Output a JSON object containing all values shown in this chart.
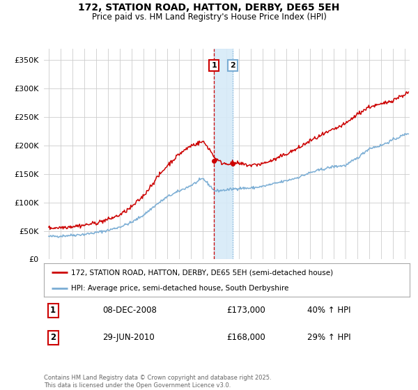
{
  "title": "172, STATION ROAD, HATTON, DERBY, DE65 5EH",
  "subtitle": "Price paid vs. HM Land Registry's House Price Index (HPI)",
  "legend_line1": "172, STATION ROAD, HATTON, DERBY, DE65 5EH (semi-detached house)",
  "legend_line2": "HPI: Average price, semi-detached house, South Derbyshire",
  "red_color": "#cc0000",
  "blue_color": "#7aadd4",
  "annotation_fill": "#d6eaf8",
  "transaction1_date": "08-DEC-2008",
  "transaction1_price": "£173,000",
  "transaction1_hpi": "40% ↑ HPI",
  "transaction2_date": "29-JUN-2010",
  "transaction2_price": "£168,000",
  "transaction2_hpi": "29% ↑ HPI",
  "footnote": "Contains HM Land Registry data © Crown copyright and database right 2025.\nThis data is licensed under the Open Government Licence v3.0.",
  "ylim": [
    0,
    370000
  ],
  "yticks": [
    0,
    50000,
    100000,
    150000,
    200000,
    250000,
    300000,
    350000
  ],
  "xlim_left": 1994.6,
  "xlim_right": 2025.4,
  "vline1_x": 2008.92,
  "vline2_x": 2010.5,
  "marker1_red_y": 173000,
  "marker2_red_y": 168000,
  "background_color": "#ffffff",
  "grid_color": "#cccccc",
  "font_family": "DejaVu Sans"
}
